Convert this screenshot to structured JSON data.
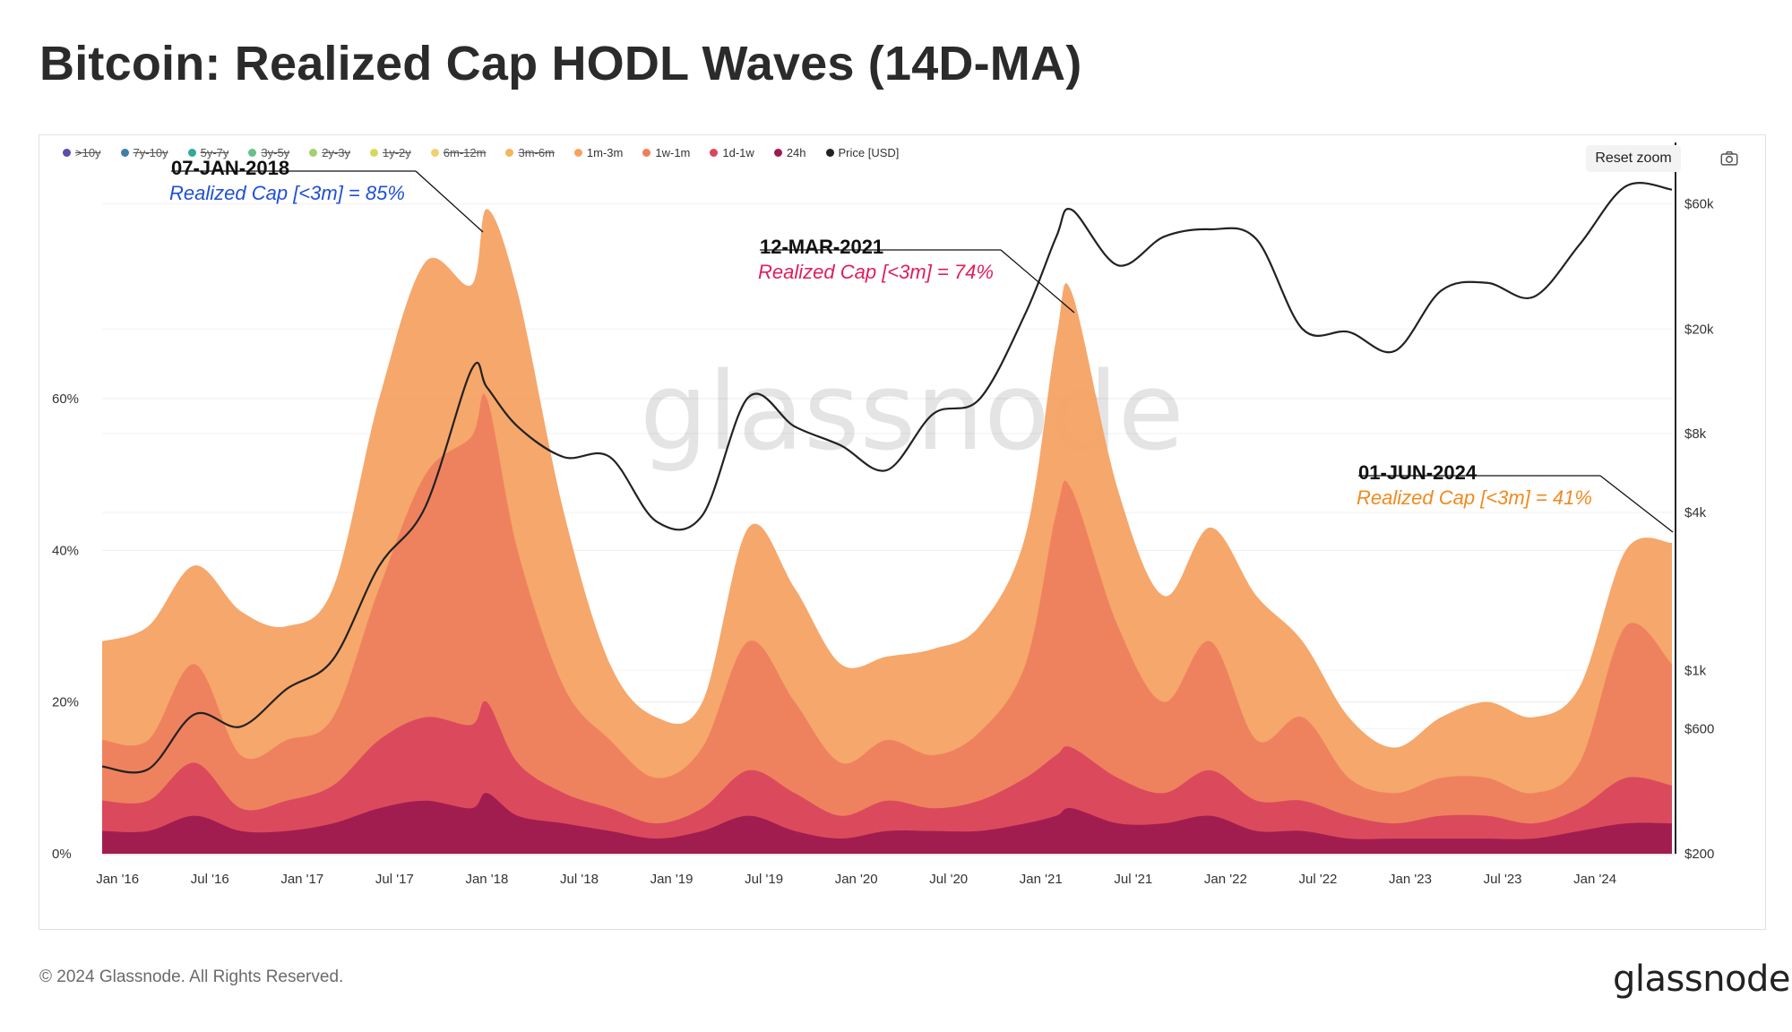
{
  "title": "Bitcoin: Realized Cap HODL Waves (14D-MA)",
  "legend": [
    {
      "label": ">10y",
      "color": "#5a4ea8",
      "enabled": false
    },
    {
      "label": "7y-10y",
      "color": "#3f7ea8",
      "enabled": false
    },
    {
      "label": "5y-7y",
      "color": "#35a89a",
      "enabled": false
    },
    {
      "label": "3y-5y",
      "color": "#66c28a",
      "enabled": false
    },
    {
      "label": "2y-3y",
      "color": "#a6d070",
      "enabled": false
    },
    {
      "label": "1y-2y",
      "color": "#d8d860",
      "enabled": false
    },
    {
      "label": "6m-12m",
      "color": "#f0d070",
      "enabled": false
    },
    {
      "label": "3m-6m",
      "color": "#f5b460",
      "enabled": false
    },
    {
      "label": "1m-3m",
      "color": "#f5a263",
      "enabled": true
    },
    {
      "label": "1w-1m",
      "color": "#ee7f5e",
      "enabled": true
    },
    {
      "label": "1d-1w",
      "color": "#d9475c",
      "enabled": true
    },
    {
      "label": "24h",
      "color": "#9f1a4e",
      "enabled": true
    },
    {
      "label": "Price [USD]",
      "color": "#222222",
      "enabled": true
    }
  ],
  "reset_zoom_label": "Reset zoom",
  "watermark": "glassnode",
  "annotations": [
    {
      "date": "07-JAN-2018",
      "note": "Realized Cap [<3m] = 85%",
      "color": "#1f4fd8"
    },
    {
      "date": "12-MAR-2021",
      "note": "Realized Cap [<3m] = 74%",
      "color": "#e01e5a"
    },
    {
      "date": "01-JUN-2024",
      "note": "Realized Cap [<3m] = 41%",
      "color": "#f08a1e"
    }
  ],
  "footer": {
    "copyright": "© 2024 Glassnode. All Rights Reserved.",
    "logo": "glassnode"
  },
  "chart_data": {
    "type": "area",
    "title": "Bitcoin: Realized Cap HODL Waves (14D-MA)",
    "x_start": "2015-12",
    "x_end": "2024-06",
    "x_ticks": [
      "Jan '16",
      "Jul '16",
      "Jan '17",
      "Jul '17",
      "Jan '18",
      "Jul '18",
      "Jan '19",
      "Jul '19",
      "Jan '20",
      "Jul '20",
      "Jan '21",
      "Jul '21",
      "Jan '22",
      "Jul '22",
      "Jan '23",
      "Jul '23",
      "Jan '24"
    ],
    "y_left_ticks": [
      "0%",
      "20%",
      "40%",
      "60%"
    ],
    "y_left_range": [
      0,
      90
    ],
    "y_right_ticks": [
      "$200",
      "$600",
      "$1k",
      "$4k",
      "$8k",
      "$20k",
      "$60k"
    ],
    "y_right_values": [
      200,
      600,
      1000,
      4000,
      8000,
      20000,
      60000
    ],
    "y_right_scale": "log",
    "y_right_range": [
      200,
      80000
    ],
    "grid": true,
    "legend_position": "top",
    "stacking": "cumulative",
    "series_colors": [
      "#f5a263",
      "#ee7f5e",
      "#d9475c",
      "#9f1a4e"
    ],
    "dates": [
      "2015-12",
      "2016-03",
      "2016-06",
      "2016-09",
      "2016-12",
      "2017-03",
      "2017-06",
      "2017-09",
      "2017-12",
      "2018-01",
      "2018-03",
      "2018-06",
      "2018-09",
      "2018-12",
      "2019-03",
      "2019-06",
      "2019-09",
      "2019-12",
      "2020-03",
      "2020-06",
      "2020-09",
      "2020-12",
      "2021-02",
      "2021-03",
      "2021-06",
      "2021-09",
      "2021-12",
      "2022-03",
      "2022-06",
      "2022-09",
      "2022-12",
      "2023-03",
      "2023-06",
      "2023-09",
      "2023-12",
      "2024-03",
      "2024-06"
    ],
    "series": [
      {
        "name": "24h",
        "values": [
          3,
          3,
          5,
          3,
          3,
          4,
          6,
          7,
          6,
          8,
          5,
          4,
          3,
          2,
          3,
          5,
          3,
          2,
          3,
          3,
          3,
          4,
          5,
          6,
          4,
          4,
          5,
          3,
          3,
          2,
          2,
          2,
          2,
          2,
          3,
          4,
          4
        ]
      },
      {
        "name": "1d-1w",
        "values": [
          7,
          7,
          12,
          6,
          7,
          9,
          15,
          18,
          17,
          20,
          12,
          8,
          6,
          4,
          6,
          11,
          8,
          5,
          7,
          6,
          7,
          10,
          13,
          14,
          10,
          8,
          11,
          7,
          7,
          5,
          4,
          5,
          5,
          4,
          6,
          10,
          9
        ]
      },
      {
        "name": "1w-1m",
        "values": [
          15,
          15,
          25,
          13,
          15,
          18,
          35,
          50,
          55,
          60,
          40,
          22,
          15,
          10,
          14,
          28,
          20,
          12,
          15,
          13,
          16,
          25,
          45,
          48,
          30,
          20,
          28,
          15,
          18,
          10,
          8,
          10,
          10,
          8,
          12,
          30,
          25
        ]
      },
      {
        "name": "1m-3m",
        "values": [
          28,
          30,
          38,
          32,
          30,
          35,
          60,
          78,
          75,
          85,
          74,
          45,
          25,
          18,
          20,
          43,
          35,
          25,
          26,
          27,
          30,
          42,
          68,
          74,
          48,
          34,
          43,
          34,
          28,
          18,
          14,
          18,
          20,
          18,
          22,
          40,
          41
        ]
      }
    ],
    "price": {
      "name": "Price [USD]",
      "dates": [
        "2015-12",
        "2016-03",
        "2016-06",
        "2016-09",
        "2016-12",
        "2017-03",
        "2017-06",
        "2017-09",
        "2017-12",
        "2018-01",
        "2018-03",
        "2018-06",
        "2018-09",
        "2018-12",
        "2019-03",
        "2019-06",
        "2019-09",
        "2019-12",
        "2020-03",
        "2020-06",
        "2020-09",
        "2020-12",
        "2021-02",
        "2021-03",
        "2021-06",
        "2021-09",
        "2021-12",
        "2022-03",
        "2022-06",
        "2022-09",
        "2022-12",
        "2023-03",
        "2023-06",
        "2023-09",
        "2023-12",
        "2024-03",
        "2024-06"
      ],
      "values": [
        430,
        420,
        680,
        610,
        850,
        1100,
        2500,
        4200,
        14000,
        12000,
        8500,
        6500,
        6500,
        3700,
        3900,
        11000,
        8500,
        7200,
        5800,
        9500,
        10800,
        23000,
        45000,
        57000,
        35000,
        45000,
        48000,
        44000,
        20000,
        19500,
        16500,
        28000,
        30000,
        26500,
        42000,
        70000,
        68000
      ]
    }
  }
}
